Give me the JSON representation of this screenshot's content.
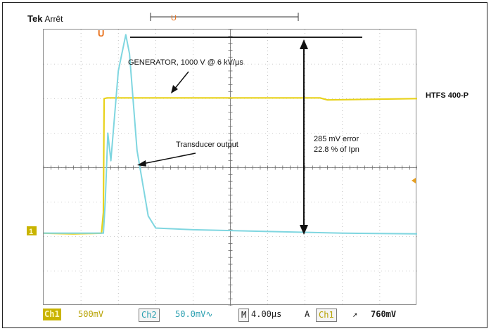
{
  "header": {
    "brand": "Tek",
    "state": "Arrêt"
  },
  "annotations": {
    "generator": "GENERATOR, 1000 V @ 6 kV/µs",
    "device": "HTFS 400-P",
    "transducer": "Transducer output",
    "error_line1": "285 mV error",
    "error_line2": "22.8 % of Ipn"
  },
  "statusbar": {
    "ch1_tag": "Ch1",
    "ch1_scale": "500mV",
    "ch2_tag": "Ch2",
    "ch2_scale": "50.0mV∿",
    "m_tag": "M",
    "timebase": "4.00µs",
    "a_tag": "A",
    "trigger_src": "Ch1",
    "trigger_slope": "↗",
    "trigger_level": "760mV"
  },
  "markers": {
    "trigger_marker": "U",
    "ch1_marker": "1"
  },
  "colors": {
    "ch1": "#e8d21a",
    "ch2": "#7fd6e0",
    "trigger": "#e8701a",
    "grid": "#9a9a9a"
  },
  "chart_data": {
    "type": "line",
    "xlim": [
      0,
      10
    ],
    "ylim": [
      0,
      8
    ],
    "series": [
      {
        "x": [
          0,
          0.8,
          1.55,
          1.6,
          1.62,
          1.7,
          7.4,
          7.6,
          10
        ],
        "y": [
          2.1,
          2.08,
          2.1,
          2.7,
          6.0,
          6.02,
          6.02,
          5.96,
          6.0
        ]
      },
      {
        "x": [
          0,
          1.6,
          1.65,
          1.72,
          1.8,
          2.0,
          2.2,
          2.3,
          2.5,
          2.8,
          3.0,
          4.0,
          6.0,
          8.0,
          10
        ],
        "y": [
          2.1,
          2.1,
          3.0,
          5.0,
          4.2,
          6.8,
          7.85,
          7.3,
          4.5,
          2.6,
          2.25,
          2.2,
          2.15,
          2.1,
          2.08
        ]
      }
    ]
  }
}
